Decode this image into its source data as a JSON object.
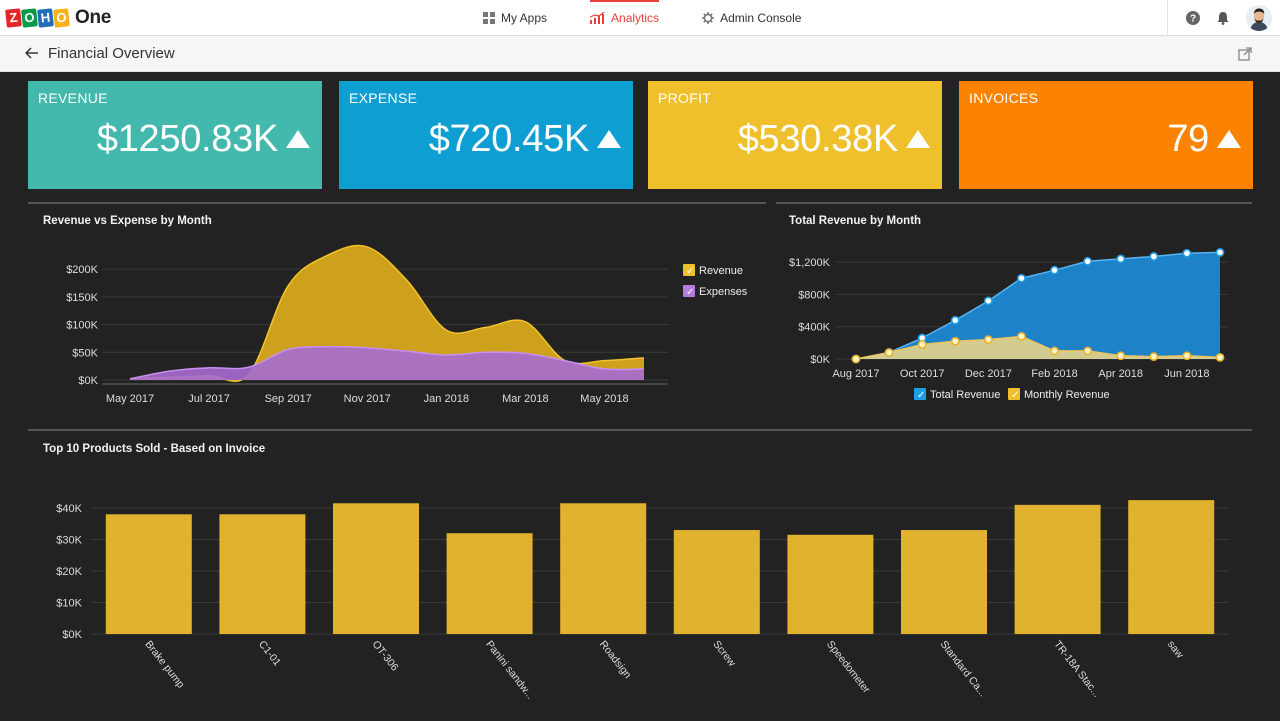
{
  "app": {
    "logo_letters": [
      "Z",
      "O",
      "H",
      "O"
    ],
    "logo_colors": [
      "#e42527",
      "#089949",
      "#226db4",
      "#f9b21d"
    ],
    "product": "One"
  },
  "topnav": {
    "items": [
      {
        "label": "My Apps",
        "icon": "grid-icon",
        "active": false
      },
      {
        "label": "Analytics",
        "icon": "chart-icon",
        "active": true
      },
      {
        "label": "Admin Console",
        "icon": "gear-icon",
        "active": false
      }
    ]
  },
  "header": {
    "icons": [
      "help-icon",
      "bell-icon",
      "avatar"
    ]
  },
  "subheader": {
    "title": "Financial Overview",
    "back_icon": "arrow-left-icon",
    "popout_icon": "external-link-icon"
  },
  "kpis": [
    {
      "label": "REVENUE",
      "value": "$1250.83K",
      "color": "#43b8ad",
      "trend": "up"
    },
    {
      "label": "EXPENSE",
      "value": "$720.45K",
      "color": "#0f9ed2",
      "trend": "up"
    },
    {
      "label": "PROFIT",
      "value": "$530.38K",
      "color": "#f0c02c",
      "trend": "up"
    },
    {
      "label": "INVOICES",
      "value": "79",
      "color": "#fb8301",
      "trend": "up"
    }
  ],
  "chart_data": [
    {
      "id": "rev-exp",
      "type": "area",
      "title": "Revenue vs Expense by Month",
      "y_ticks": [
        "$200K",
        "$150K",
        "$100K",
        "$50K",
        "$0K"
      ],
      "y_tick_values": [
        200,
        150,
        100,
        50,
        0
      ],
      "x_tick_labels": [
        "May 2017",
        "Jul 2017",
        "Sep 2017",
        "Nov 2017",
        "Jan 2018",
        "Mar 2018",
        "May 2018"
      ],
      "x_tick_months": [
        0,
        2,
        4,
        6,
        8,
        10,
        12
      ],
      "ylim": [
        0,
        220
      ],
      "legend": [
        {
          "label": "Revenue",
          "color": "#f0c02c"
        },
        {
          "label": "Expenses",
          "color": "#b47ce0"
        }
      ],
      "series": [
        {
          "name": "Revenue",
          "color": "#d8a91e",
          "x": [
            0,
            1,
            2,
            3,
            4,
            5,
            6,
            7,
            8,
            9,
            10,
            11,
            12,
            13
          ],
          "values": [
            2,
            5,
            8,
            10,
            170,
            225,
            240,
            180,
            90,
            95,
            105,
            35,
            35,
            40
          ]
        },
        {
          "name": "Expenses",
          "color": "#a56bd2",
          "x": [
            0,
            1,
            2,
            3,
            4,
            5,
            6,
            7,
            8,
            9,
            10,
            11,
            12,
            13
          ],
          "values": [
            2,
            16,
            22,
            23,
            55,
            60,
            58,
            52,
            45,
            50,
            48,
            35,
            20,
            20
          ]
        }
      ]
    },
    {
      "id": "total-rev",
      "type": "area",
      "title": "Total Revenue by Month",
      "y_ticks": [
        "$1,200K",
        "$800K",
        "$400K",
        "$0K"
      ],
      "y_tick_values": [
        1200,
        800,
        400,
        0
      ],
      "x_tick_labels": [
        "Aug 2017",
        "Oct 2017",
        "Dec 2017",
        "Feb 2018",
        "Apr 2018",
        "Jun 2018"
      ],
      "x_tick_months": [
        0,
        2,
        4,
        6,
        8,
        10
      ],
      "ylim": [
        0,
        1350
      ],
      "legend": [
        {
          "label": "Total Revenue",
          "color": "#1e9de8"
        },
        {
          "label": "Monthly Revenue",
          "color": "#f0c02c"
        }
      ],
      "series": [
        {
          "name": "Total Revenue",
          "color": "#1e88d2",
          "x": [
            0,
            1,
            2,
            3,
            4,
            5,
            6,
            7,
            8,
            9,
            10,
            11
          ],
          "values": [
            0,
            80,
            260,
            480,
            720,
            1000,
            1100,
            1210,
            1240,
            1270,
            1310,
            1320
          ]
        },
        {
          "name": "Monthly Revenue",
          "color": "#f0d070",
          "x": [
            0,
            1,
            2,
            3,
            4,
            5,
            6,
            7,
            8,
            9,
            10,
            11
          ],
          "values": [
            0,
            80,
            180,
            220,
            240,
            280,
            100,
            100,
            40,
            30,
            40,
            20
          ]
        }
      ]
    },
    {
      "id": "top-products",
      "type": "bar",
      "title": "Top 10 Products Sold - Based on Invoice",
      "y_ticks": [
        "$40K",
        "$30K",
        "$20K",
        "$10K",
        "$0K"
      ],
      "y_tick_values": [
        40,
        30,
        20,
        10,
        0
      ],
      "ylim": [
        0,
        43
      ],
      "categories": [
        "Brake pump",
        "C1-01",
        "OT-306",
        "Panini sandw...",
        "Roadsign",
        "Screw",
        "Speedometer",
        "Standard Ca...",
        "TR-18A Stac...",
        "saw"
      ],
      "values": [
        38,
        38,
        41.5,
        32,
        41.5,
        33,
        31.5,
        33,
        41,
        42.5
      ],
      "color": "#e1b22e"
    }
  ]
}
